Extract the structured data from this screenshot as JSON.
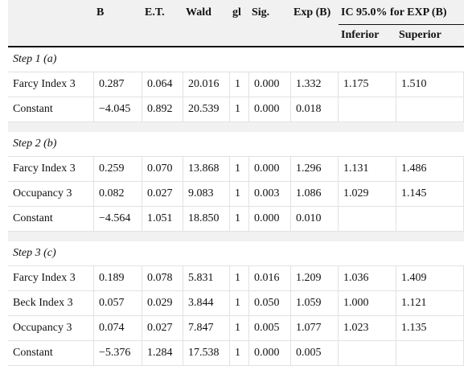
{
  "table": {
    "header": [
      "B",
      "E.T.",
      "Wald",
      "gl",
      "Sig.",
      "Exp (B)",
      "IC 95.0% for EXP (B)"
    ],
    "subheader": [
      "Inferior",
      "Superior"
    ],
    "groups": [
      {
        "label": "Step 1 (a)",
        "rows": [
          [
            "Farcy Index 3",
            "0.287",
            "0.064",
            "20.016",
            "1",
            "0.000",
            "1.332",
            "1.175",
            "1.510"
          ],
          [
            "Constant",
            "−4.045",
            "0.892",
            "20.539",
            "1",
            "0.000",
            "0.018"
          ]
        ]
      },
      {
        "label": "Step 2 (b)",
        "rows": [
          [
            "Farcy Index 3",
            "0.259",
            "0.070",
            "13.868",
            "1",
            "0.000",
            "1.296",
            "1.131",
            "1.486"
          ],
          [
            "Occupancy 3",
            "0.082",
            "0.027",
            "9.083",
            "1",
            "0.003",
            "1.086",
            "1.029",
            "1.145"
          ],
          [
            "Constant",
            "−4.564",
            "1.051",
            "18.850",
            "1",
            "0.000",
            "0.010"
          ]
        ]
      },
      {
        "label": "Step 3 (c)",
        "rows": [
          [
            "Farcy Index 3",
            "0.189",
            "0.078",
            "5.831",
            "1",
            "0.016",
            "1.209",
            "1.036",
            "1.409"
          ],
          [
            "Beck Index 3",
            "0.057",
            "0.029",
            "3.844",
            "1",
            "0.050",
            "1.059",
            "1.000",
            "1.121"
          ],
          [
            "Occupancy 3",
            "0.074",
            "0.027",
            "7.847",
            "1",
            "0.005",
            "1.077",
            "1.023",
            "1.135"
          ],
          [
            "Constant",
            "−5.376",
            "1.284",
            "17.538",
            "1",
            "0.000",
            "0.005"
          ]
        ]
      }
    ]
  }
}
